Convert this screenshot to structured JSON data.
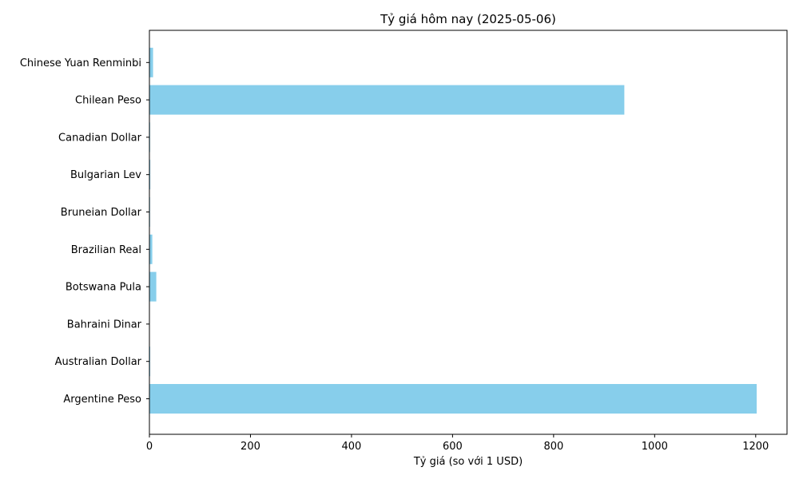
{
  "chart_data": {
    "type": "bar",
    "orientation": "horizontal",
    "title": "Tỷ giá hôm nay (2025-05-06)",
    "xlabel": "Tỷ giá (so với 1 USD)",
    "ylabel": "",
    "categories": [
      "Argentine Peso",
      "Australian Dollar",
      "Bahraini Dinar",
      "Botswana Pula",
      "Brazilian Real",
      "Bruneian Dollar",
      "Bulgarian Lev",
      "Canadian Dollar",
      "Chilean Peso",
      "Chinese Yuan Renminbi"
    ],
    "values": [
      1202,
      1.55,
      0.376,
      13.6,
      5.7,
      1.29,
      1.73,
      1.38,
      940,
      7.21
    ],
    "xlim": [
      0,
      1262
    ],
    "xticks": [
      0,
      200,
      400,
      600,
      800,
      1000,
      1200
    ],
    "bar_color": "#87ceeb",
    "grid": false
  }
}
